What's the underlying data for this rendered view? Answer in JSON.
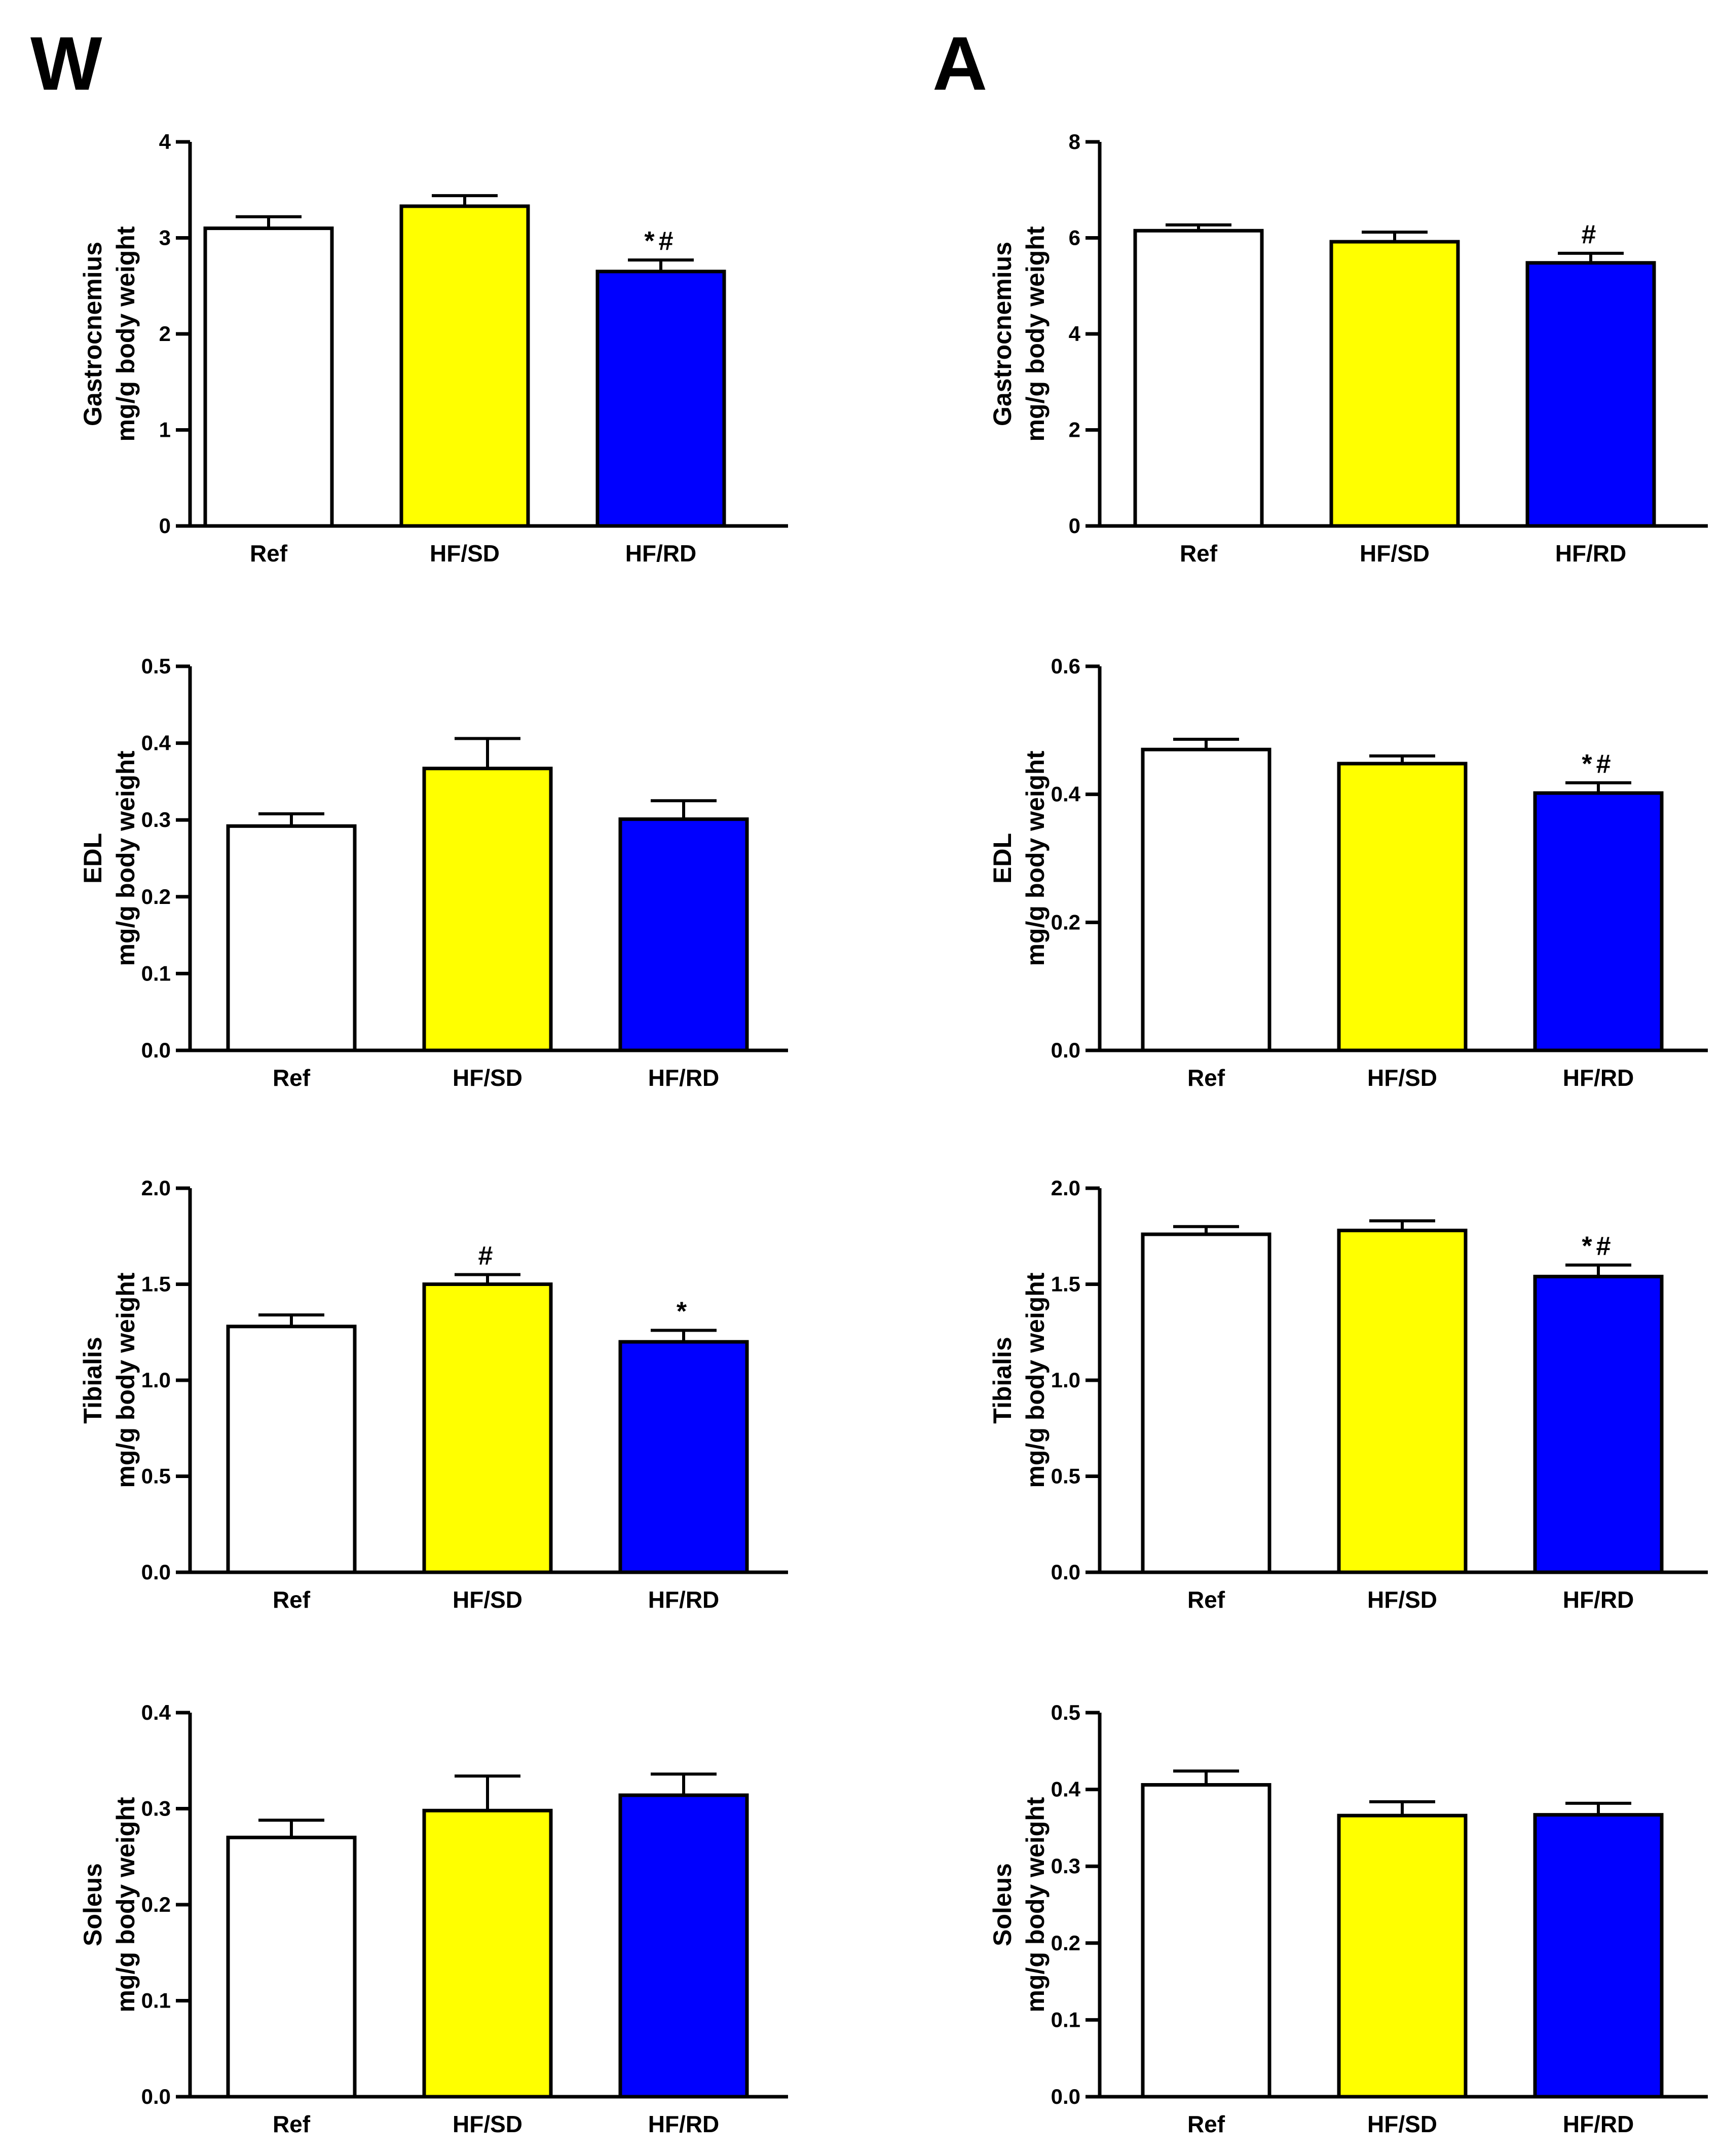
{
  "panels": [
    {
      "label": "W"
    },
    {
      "label": "A"
    }
  ],
  "colors": {
    "Ref": "#ffffff",
    "HF/SD": "#ffff00",
    "HF/RD": "#0000ff",
    "axis": "#000000"
  },
  "chart_data": [
    {
      "type": "bar",
      "panel": "W",
      "title": "",
      "ylabel": [
        "Gastrocnemius",
        "mg/g body weight"
      ],
      "xlabel": "",
      "categories": [
        "Ref",
        "HF/SD",
        "HF/RD"
      ],
      "values": [
        3.1,
        3.33,
        2.65
      ],
      "errors": [
        0.12,
        0.11,
        0.12
      ],
      "annotations": [
        "",
        "",
        "*#"
      ],
      "ylim": [
        0,
        4
      ],
      "yticks": [
        "0",
        "1",
        "2",
        "3",
        "4"
      ]
    },
    {
      "type": "bar",
      "panel": "A",
      "title": "",
      "ylabel": [
        "Gastrocnemius",
        "mg/g body weight"
      ],
      "xlabel": "",
      "categories": [
        "Ref",
        "HF/SD",
        "HF/RD"
      ],
      "values": [
        6.15,
        5.92,
        5.48
      ],
      "errors": [
        0.12,
        0.2,
        0.2
      ],
      "annotations": [
        "",
        "",
        "#"
      ],
      "ylim": [
        0,
        8
      ],
      "yticks": [
        "0",
        "2",
        "4",
        "6",
        "8"
      ]
    },
    {
      "type": "bar",
      "panel": "W",
      "title": "",
      "ylabel": [
        "EDL",
        "mg/g body weight"
      ],
      "xlabel": "",
      "categories": [
        "Ref",
        "HF/SD",
        "HF/RD"
      ],
      "values": [
        0.292,
        0.367,
        0.301
      ],
      "errors": [
        0.016,
        0.039,
        0.024
      ],
      "annotations": [
        "",
        "",
        ""
      ],
      "ylim": [
        0,
        0.5
      ],
      "yticks": [
        "0.0",
        "0.1",
        "0.2",
        "0.3",
        "0.4",
        "0.5"
      ]
    },
    {
      "type": "bar",
      "panel": "A",
      "title": "",
      "ylabel": [
        "EDL",
        "mg/g body weight"
      ],
      "xlabel": "",
      "categories": [
        "Ref",
        "HF/SD",
        "HF/RD"
      ],
      "values": [
        0.47,
        0.448,
        0.402
      ],
      "errors": [
        0.016,
        0.012,
        0.016
      ],
      "annotations": [
        "",
        "",
        "*#"
      ],
      "ylim": [
        0,
        0.6
      ],
      "yticks": [
        "0.0",
        "0.2",
        "0.4",
        "0.6"
      ]
    },
    {
      "type": "bar",
      "panel": "W",
      "title": "",
      "ylabel": [
        "Tibialis",
        "mg/g body weight"
      ],
      "xlabel": "",
      "categories": [
        "Ref",
        "HF/SD",
        "HF/RD"
      ],
      "values": [
        1.28,
        1.5,
        1.2
      ],
      "errors": [
        0.06,
        0.05,
        0.06
      ],
      "annotations": [
        "",
        "#",
        "*"
      ],
      "ylim": [
        0,
        2
      ],
      "yticks": [
        "0.0",
        "0.5",
        "1.0",
        "1.5",
        "2.0"
      ]
    },
    {
      "type": "bar",
      "panel": "A",
      "title": "",
      "ylabel": [
        "Tibialis",
        "mg/g body weight"
      ],
      "xlabel": "",
      "categories": [
        "Ref",
        "HF/SD",
        "HF/RD"
      ],
      "values": [
        1.76,
        1.78,
        1.54
      ],
      "errors": [
        0.04,
        0.05,
        0.06
      ],
      "annotations": [
        "",
        "",
        "*#"
      ],
      "ylim": [
        0,
        2
      ],
      "yticks": [
        "0.0",
        "0.5",
        "1.0",
        "1.5",
        "2.0"
      ]
    },
    {
      "type": "bar",
      "panel": "W",
      "title": "",
      "ylabel": [
        "Soleus",
        "mg/g body weight"
      ],
      "xlabel": "",
      "categories": [
        "Ref",
        "HF/SD",
        "HF/RD"
      ],
      "values": [
        0.27,
        0.298,
        0.314
      ],
      "errors": [
        0.018,
        0.036,
        0.022
      ],
      "annotations": [
        "",
        "",
        ""
      ],
      "ylim": [
        0,
        0.4
      ],
      "yticks": [
        "0.0",
        "0.1",
        "0.2",
        "0.3",
        "0.4"
      ]
    },
    {
      "type": "bar",
      "panel": "A",
      "title": "",
      "ylabel": [
        "Soleus",
        "mg/g body weight"
      ],
      "xlabel": "",
      "categories": [
        "Ref",
        "HF/SD",
        "HF/RD"
      ],
      "values": [
        0.406,
        0.366,
        0.367
      ],
      "errors": [
        0.018,
        0.018,
        0.015
      ],
      "annotations": [
        "",
        "",
        ""
      ],
      "ylim": [
        0,
        0.5
      ],
      "yticks": [
        "0.0",
        "0.1",
        "0.2",
        "0.3",
        "0.4",
        "0.5"
      ]
    }
  ]
}
